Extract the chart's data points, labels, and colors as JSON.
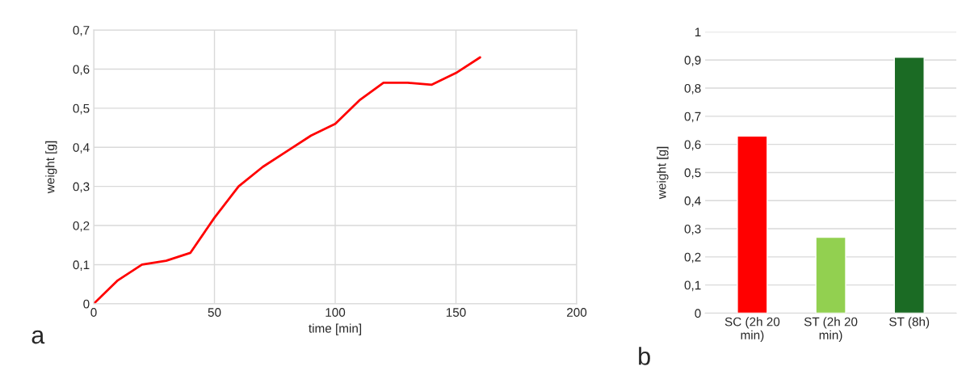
{
  "chart_data": [
    {
      "type": "line",
      "xlabel": "time [min]",
      "ylabel": "weight [g]",
      "annotations": [
        "a"
      ],
      "grid": true,
      "marker": "none",
      "line_style": "solid",
      "x": [
        0,
        10,
        20,
        30,
        40,
        50,
        60,
        70,
        80,
        90,
        100,
        110,
        120,
        130,
        140,
        150,
        160
      ],
      "series": [
        {
          "color": "#ff0000",
          "values": [
            0,
            0.06,
            0.1,
            0.11,
            0.13,
            0.22,
            0.3,
            0.35,
            0.39,
            0.43,
            0.46,
            0.52,
            0.565,
            0.565,
            0.56,
            0.59,
            0.63
          ]
        }
      ],
      "xlim": [
        0,
        200
      ],
      "xticks": [
        0,
        50,
        100,
        150,
        200
      ],
      "ylim": [
        0,
        0.7
      ],
      "yticks": [
        0,
        {
          "value": 0.1,
          "label": "0,1"
        },
        {
          "value": 0.2,
          "label": "0,2"
        },
        {
          "value": 0.3,
          "label": "0,3"
        },
        {
          "value": 0.4,
          "label": "0,4"
        },
        {
          "value": 0.5,
          "label": "0,5"
        },
        {
          "value": 0.6,
          "label": "0,6"
        },
        {
          "value": 0.7,
          "label": "0,7"
        }
      ]
    },
    {
      "type": "bar",
      "ylabel": "weight [g]",
      "annotations": [
        "b"
      ],
      "grid": "y",
      "categories": [
        "SC (2h 20\nmin)",
        "ST (2h 20\nmin)",
        "ST (8h)"
      ],
      "values": [
        0.63,
        0.27,
        0.91
      ],
      "colors": [
        "#ff0000",
        "#92d050",
        "#1b6b24"
      ],
      "ylim": [
        0,
        1
      ],
      "yticks": [
        0,
        {
          "value": 0.1,
          "label": "0,1"
        },
        {
          "value": 0.2,
          "label": "0,2"
        },
        {
          "value": 0.3,
          "label": "0,3"
        },
        {
          "value": 0.4,
          "label": "0,4"
        },
        {
          "value": 0.5,
          "label": "0,5"
        },
        {
          "value": 0.6,
          "label": "0,6"
        },
        {
          "value": 0.7,
          "label": "0,7"
        },
        {
          "value": 0.8,
          "label": "0,8"
        },
        {
          "value": 0.9,
          "label": "0,9"
        },
        1
      ]
    }
  ]
}
